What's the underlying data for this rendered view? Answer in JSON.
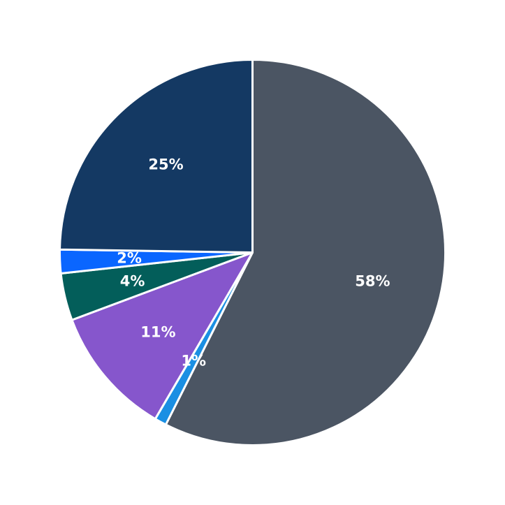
{
  "chart_data": {
    "type": "pie",
    "title": "",
    "start_angle_deg": 90,
    "direction": "clockwise",
    "slices": [
      {
        "value": 58,
        "label": "58%",
        "color": "#4b5563"
      },
      {
        "value": 1,
        "label": "1%",
        "color": "#1a8fe3"
      },
      {
        "value": 11,
        "label": "11%",
        "color": "#8656cc"
      },
      {
        "value": 4,
        "label": "4%",
        "color": "#035e5a"
      },
      {
        "value": 2,
        "label": "2%",
        "color": "#0a66ff"
      },
      {
        "value": 25,
        "label": "25%",
        "color": "#143963"
      }
    ],
    "slice_border_color": "#ffffff",
    "label_color": "#ffffff"
  }
}
